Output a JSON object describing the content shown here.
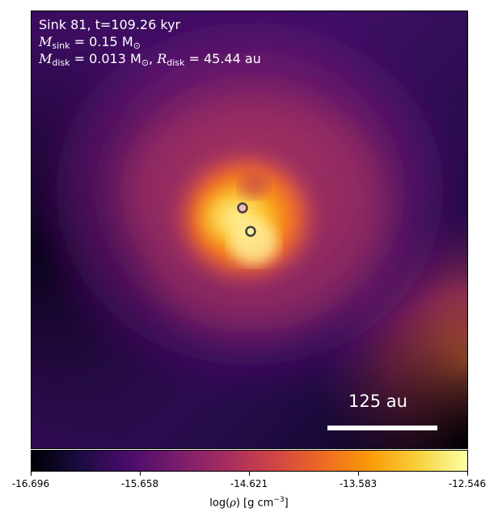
{
  "header": {
    "sink_line": "Sink 81, t=109.26 kyr",
    "m_sink_symbol": "M",
    "m_sink_sub": "sink",
    "m_sink_value": " = 0.15 M",
    "m_disk_symbol": "M",
    "m_disk_sub": "disk",
    "m_disk_value": " = 0.013 M",
    "r_disk_symbol": "R",
    "r_disk_sub": "disk",
    "r_disk_value": " = 45.44 au",
    "sun_sub": "⊙"
  },
  "scale_bar": {
    "label": "125 au"
  },
  "colorbar": {
    "tick_labels": [
      "-16.696",
      "-15.658",
      "-14.621",
      "-13.583",
      "-12.546"
    ],
    "label_prefix": "log(",
    "label_symbol": "ρ",
    "label_mid": ") [g cm",
    "label_exp": "−3",
    "label_suffix": "]",
    "colormap": "inferno",
    "colors": [
      "#000004",
      "#1b0c41",
      "#4a0c6b",
      "#781c6d",
      "#a52c60",
      "#cf4446",
      "#ed6925",
      "#fb9b06",
      "#f7d13d",
      "#fcffa4"
    ]
  },
  "sinks": [
    {
      "name": "sink-primary",
      "fill": "#e8c0c0",
      "stroke": "#4b3b3b"
    },
    {
      "name": "sink-secondary",
      "fill": "#fff1a0",
      "stroke": "#3d3d3d"
    }
  ]
}
